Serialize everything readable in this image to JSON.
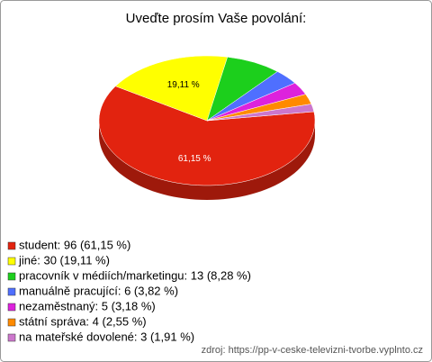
{
  "chart_data": {
    "type": "pie",
    "title": "Uveďte prosím Vaše povolání:",
    "categories": [
      "student: 96 (61,15 %)",
      "jiné: 30 (19,11 %)",
      "pracovník v médiích/marketingu: 13 (8,28 %)",
      "manuálně pracující: 6 (3,82 %)",
      "nezaměstnaný: 5 (3,18 %)",
      "státní správa: 4 (2,55 %)",
      "na mateřské dovolené: 3 (1,91 %)"
    ],
    "values": [
      61.15,
      19.11,
      8.28,
      3.82,
      3.18,
      2.55,
      1.91
    ],
    "value_labels": [
      "61,15 %",
      "19,11 %",
      null,
      null,
      null,
      null,
      null
    ],
    "colors": [
      "#e2230f",
      "#ffff00",
      "#1ccf1c",
      "#4f6fff",
      "#dd22dd",
      "#ff8a00",
      "#cc77cc"
    ],
    "source": "zdroj: https://pp-v-ceske-televizni-tvorbe.vyplnto.cz"
  }
}
